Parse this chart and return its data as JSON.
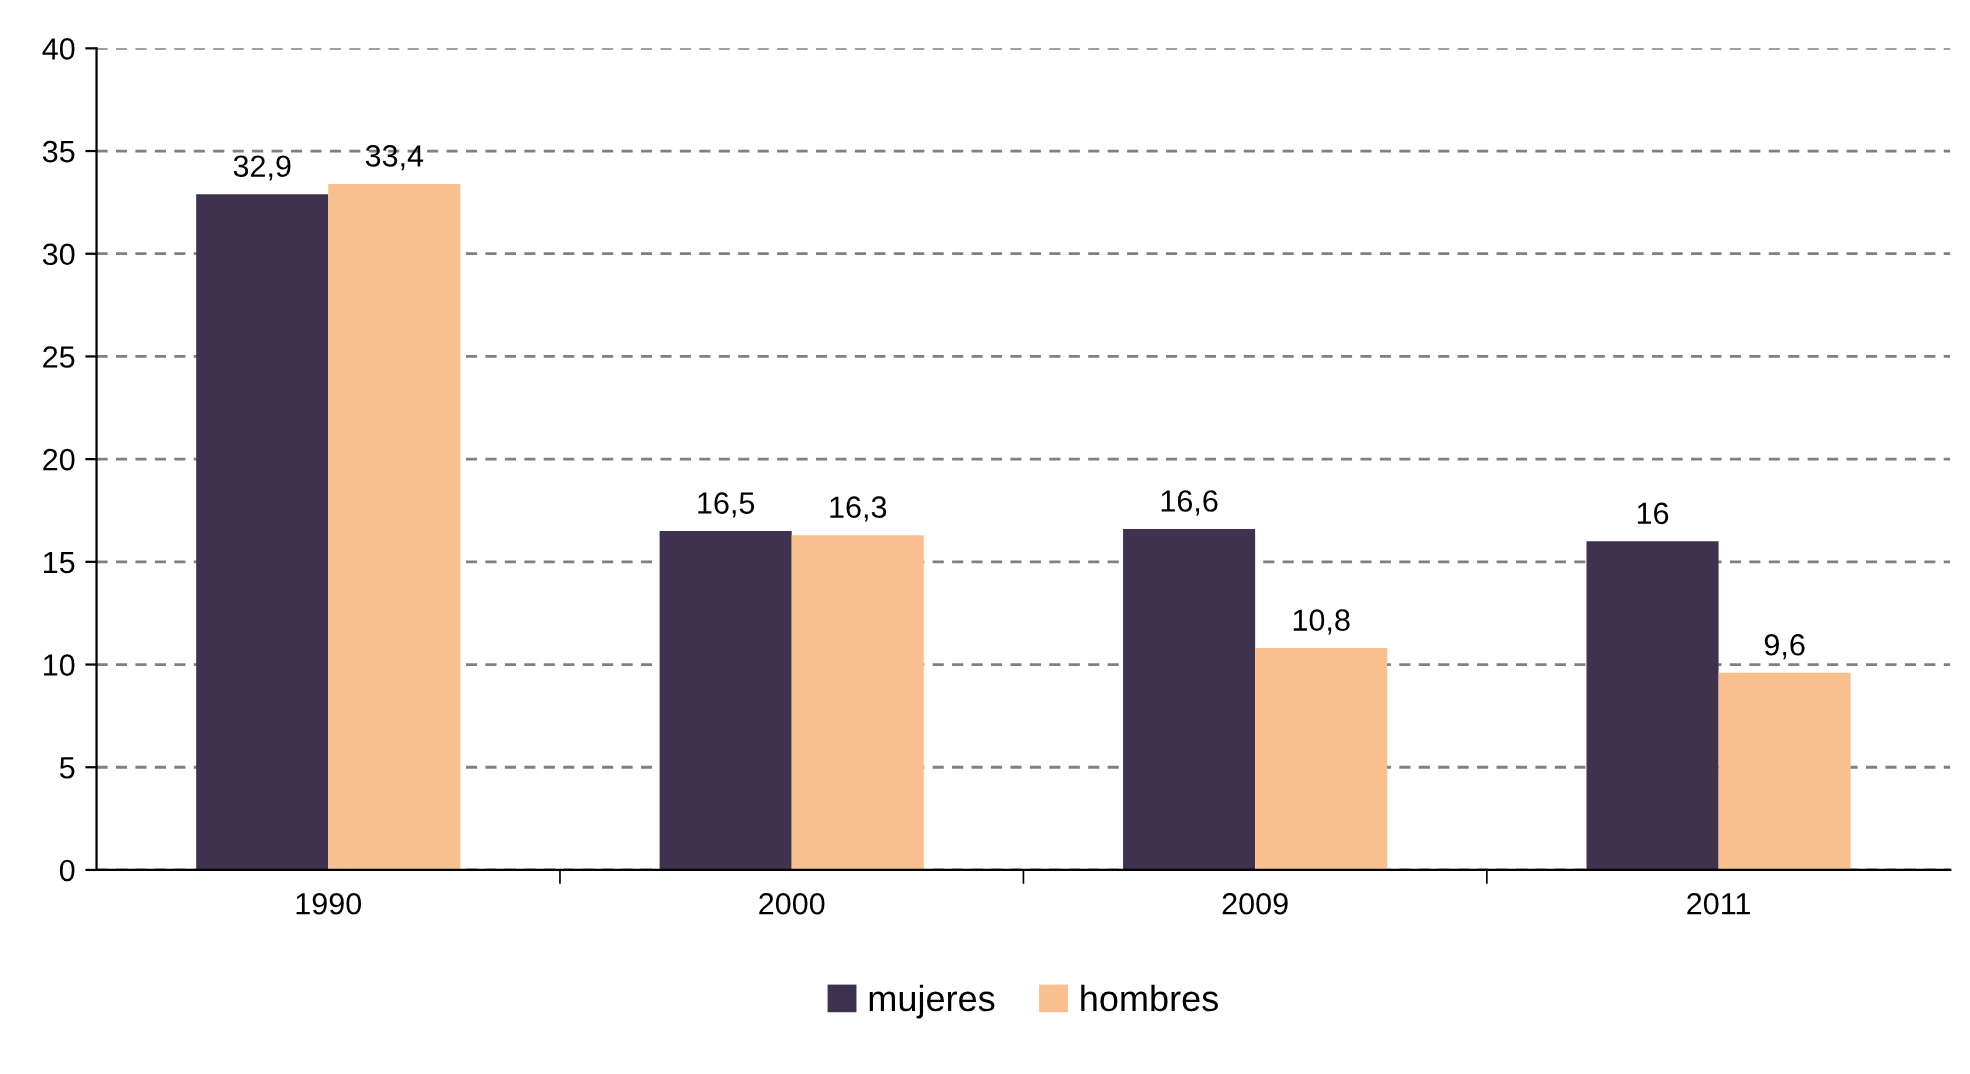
{
  "chart_data": {
    "type": "bar",
    "categories": [
      "1990",
      "2000",
      "2009",
      "2011"
    ],
    "series": [
      {
        "name": "mujeres",
        "color": "#3f3150",
        "values": [
          32.9,
          16.5,
          16.6,
          16
        ],
        "value_labels": [
          "32,9",
          "16,5",
          "16,6",
          "16"
        ]
      },
      {
        "name": "hombres",
        "color": "#f9c08f",
        "values": [
          33.4,
          16.3,
          10.8,
          9.6
        ],
        "value_labels": [
          "33,4",
          "16,3",
          "10,8",
          "9,6"
        ]
      }
    ],
    "ylim": [
      0,
      40
    ],
    "yticks": [
      0,
      5,
      10,
      15,
      20,
      25,
      30,
      35,
      40
    ],
    "grid": "y",
    "legend": "bottom"
  }
}
